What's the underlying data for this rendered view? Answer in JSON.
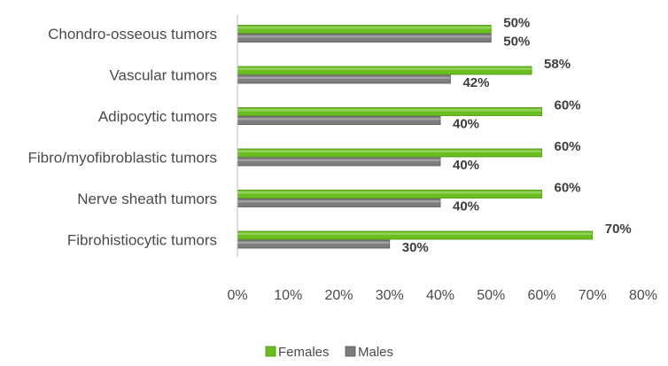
{
  "chart_data": {
    "type": "bar",
    "orientation": "horizontal",
    "categories": [
      "Chondro-osseous tumors",
      "Vascular tumors",
      "Adipocytic tumors",
      "Fibro/myofibroblastic tumors",
      "Nerve sheath tumors",
      "Fibrohistiocytic tumors"
    ],
    "series": [
      {
        "name": "Females",
        "color": "#6abf1f",
        "values": [
          50,
          58,
          60,
          60,
          60,
          70
        ],
        "labels": [
          "50%",
          "58%",
          "60%",
          "60%",
          "60%",
          "70%"
        ]
      },
      {
        "name": "Males",
        "color": "#7d7d7d",
        "values": [
          50,
          42,
          40,
          40,
          40,
          30
        ],
        "labels": [
          "50%",
          "42%",
          "40%",
          "40%",
          "40%",
          "30%"
        ]
      }
    ],
    "xlim": [
      0,
      80
    ],
    "xticks": [
      "0%",
      "10%",
      "20%",
      "30%",
      "40%",
      "50%",
      "60%",
      "70%",
      "80%"
    ],
    "grid": false,
    "legend_position": "bottom",
    "title": "",
    "xlabel": "",
    "ylabel": ""
  }
}
